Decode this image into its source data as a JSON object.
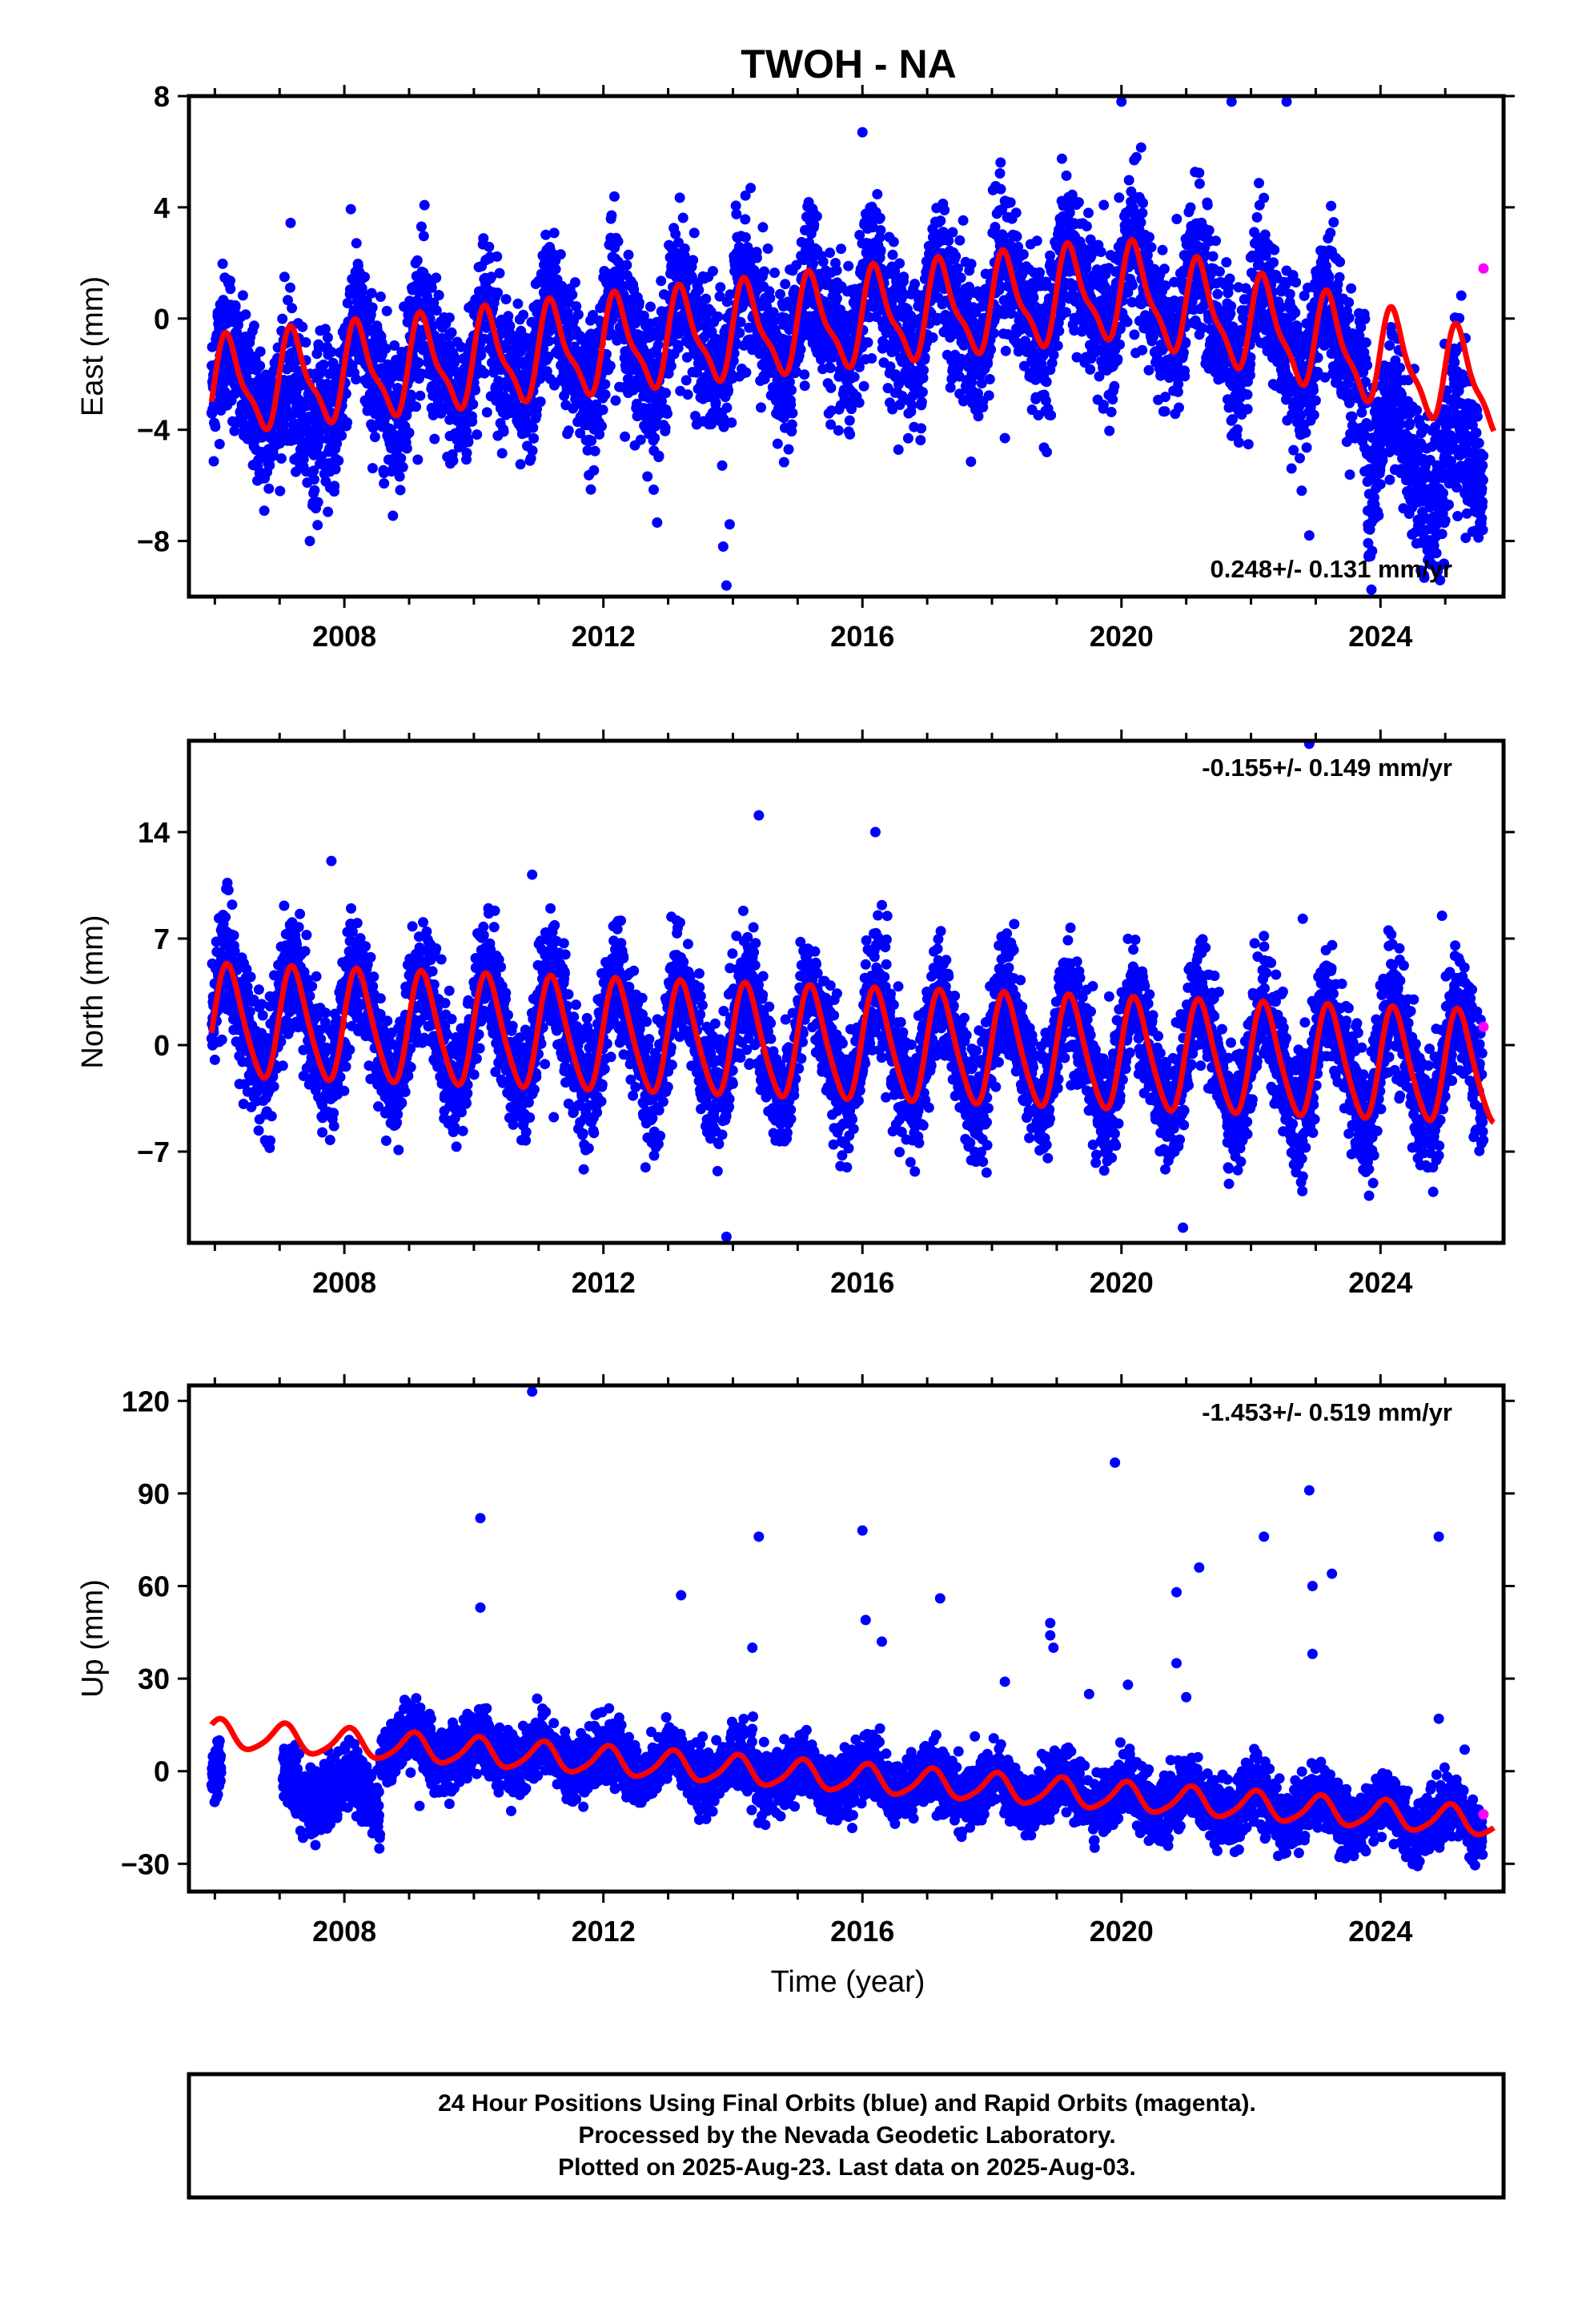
{
  "title": "TWOH - NA",
  "xlabel": "Time (year)",
  "colors": {
    "final": "#0000ff",
    "rapid": "#ff00ff",
    "model": "#ff0000",
    "frame": "#000000"
  },
  "chart_data": [
    {
      "type": "scatter",
      "component": "east",
      "ylabel": "East (mm)",
      "xlim": [
        2005.6,
        2025.9
      ],
      "ylim": [
        -10,
        8
      ],
      "xticks": [
        2008,
        2012,
        2016,
        2020,
        2024
      ],
      "yticks": [
        -8,
        -4,
        0,
        4,
        8
      ],
      "yticklabels": [
        "−8",
        "−4",
        "0",
        "4",
        "8"
      ],
      "rate_text": "0.248+/- 0.131 mm/yr",
      "rate_position": "bottom-right",
      "model": {
        "offset_2006": -2.5,
        "rate_mm_yr": 0.248,
        "annual_amp": 1.6,
        "semiannual_amp": 0.5,
        "breaks": [
          {
            "x": 2020.0,
            "rate_after": -0.6
          }
        ]
      },
      "scatter": {
        "data_start": 2005.95,
        "data_end": 2025.59,
        "noise_sd": 1.3,
        "points_per_year": 300,
        "anomalies": [
          {
            "x_start": 2007.0,
            "x_end": 2007.6,
            "shift": -2.0
          },
          {
            "x_start": 2023.8,
            "x_end": 2025.6,
            "shift": -4.0
          }
        ]
      },
      "rapid_point": {
        "x": 2025.59,
        "y": 1.8
      },
      "outliers": [
        {
          "x": 2013.9,
          "y": -9.6
        },
        {
          "x": 2013.85,
          "y": -8.2
        },
        {
          "x": 2013.95,
          "y": -7.4
        },
        {
          "x": 2016.0,
          "y": 6.7
        },
        {
          "x": 2018.2,
          "y": -4.3
        },
        {
          "x": 2022.9,
          "y": -7.8
        },
        {
          "x": 2020.0,
          "y": 7.8
        },
        {
          "x": 2021.7,
          "y": 7.8
        },
        {
          "x": 2022.55,
          "y": 7.8
        }
      ]
    },
    {
      "type": "scatter",
      "component": "north",
      "ylabel": "North (mm)",
      "xlim": [
        2005.6,
        2025.9
      ],
      "ylim": [
        -13,
        20
      ],
      "xticks": [
        2008,
        2012,
        2016,
        2020,
        2024
      ],
      "yticks": [
        -7,
        0,
        7,
        14
      ],
      "yticklabels": [
        "−7",
        "0",
        "7",
        "14"
      ],
      "rate_text": "-0.155+/- 0.149 mm/yr",
      "rate_position": "top-right",
      "model": {
        "offset_2006": 1.5,
        "rate_mm_yr": -0.155,
        "annual_amp": 3.6,
        "semiannual_amp": 0.5,
        "breaks": []
      },
      "scatter": {
        "data_start": 2005.95,
        "data_end": 2025.59,
        "noise_sd": 1.9,
        "points_per_year": 300,
        "anomalies": []
      },
      "rapid_point": {
        "x": 2025.59,
        "y": 1.2
      },
      "outliers": [
        {
          "x": 2014.4,
          "y": 15.1
        },
        {
          "x": 2016.2,
          "y": 14.0
        },
        {
          "x": 2016.3,
          "y": 9.2
        },
        {
          "x": 2007.8,
          "y": 12.1
        },
        {
          "x": 2010.9,
          "y": 11.2
        },
        {
          "x": 2022.9,
          "y": 19.8
        },
        {
          "x": 2013.9,
          "y": -12.6
        },
        {
          "x": 2020.95,
          "y": -12.0
        },
        {
          "x": 2022.8,
          "y": 8.3
        },
        {
          "x": 2024.95,
          "y": 8.5
        }
      ]
    },
    {
      "type": "scatter",
      "component": "up",
      "ylabel": "Up (mm)",
      "xlim": [
        2005.6,
        2025.9
      ],
      "ylim": [
        -39,
        125
      ],
      "xticks": [
        2008,
        2012,
        2016,
        2020,
        2024
      ],
      "yticks": [
        -30,
        0,
        30,
        60,
        90,
        120
      ],
      "yticklabels": [
        "−30",
        "0",
        "30",
        "60",
        "90",
        "120"
      ],
      "rate_text": "-1.453+/- 0.519 mm/yr",
      "rate_position": "top-right",
      "model": {
        "offset_2006": 12.0,
        "rate_mm_yr": -1.453,
        "annual_amp": 4.5,
        "semiannual_amp": 0.8,
        "breaks": []
      },
      "scatter": {
        "data_start": 2005.95,
        "data_end": 2025.59,
        "noise_sd": 4.8,
        "points_per_year": 300,
        "gaps": [
          [
            2006.1,
            2007.05
          ]
        ],
        "anomalies": [
          {
            "x_start": 2005.9,
            "x_end": 2008.55,
            "shift": -20.0
          }
        ]
      },
      "rapid_point": {
        "x": 2025.59,
        "y": -14.0
      },
      "outliers": [
        {
          "x": 2010.9,
          "y": 123
        },
        {
          "x": 2019.9,
          "y": 100
        },
        {
          "x": 2022.9,
          "y": 91
        },
        {
          "x": 2010.1,
          "y": 82
        },
        {
          "x": 2014.4,
          "y": 76
        },
        {
          "x": 2016.0,
          "y": 78
        },
        {
          "x": 2024.9,
          "y": 76
        },
        {
          "x": 2022.2,
          "y": 76
        },
        {
          "x": 2021.2,
          "y": 66
        },
        {
          "x": 2023.25,
          "y": 64
        },
        {
          "x": 2022.95,
          "y": 60
        },
        {
          "x": 2020.85,
          "y": 58
        },
        {
          "x": 2013.2,
          "y": 57
        },
        {
          "x": 2010.1,
          "y": 53
        },
        {
          "x": 2017.2,
          "y": 56
        },
        {
          "x": 2018.9,
          "y": 48
        },
        {
          "x": 2018.9,
          "y": 44
        },
        {
          "x": 2018.95,
          "y": 40
        },
        {
          "x": 2016.05,
          "y": 49
        },
        {
          "x": 2016.3,
          "y": 42
        },
        {
          "x": 2014.3,
          "y": 40
        },
        {
          "x": 2020.85,
          "y": 35
        },
        {
          "x": 2022.95,
          "y": 38
        },
        {
          "x": 2020.1,
          "y": 28
        },
        {
          "x": 2019.5,
          "y": 25
        },
        {
          "x": 2018.2,
          "y": 29
        },
        {
          "x": 2021.0,
          "y": 24
        },
        {
          "x": 2024.9,
          "y": 17
        },
        {
          "x": 2025.3,
          "y": 7
        }
      ]
    }
  ],
  "footer": {
    "line1": "24 Hour Positions Using Final Orbits (blue) and Rapid Orbits (magenta).",
    "line2": "Processed by the Nevada Geodetic Laboratory.",
    "line3": "Plotted on 2025-Aug-23. Last data on 2025-Aug-03."
  }
}
